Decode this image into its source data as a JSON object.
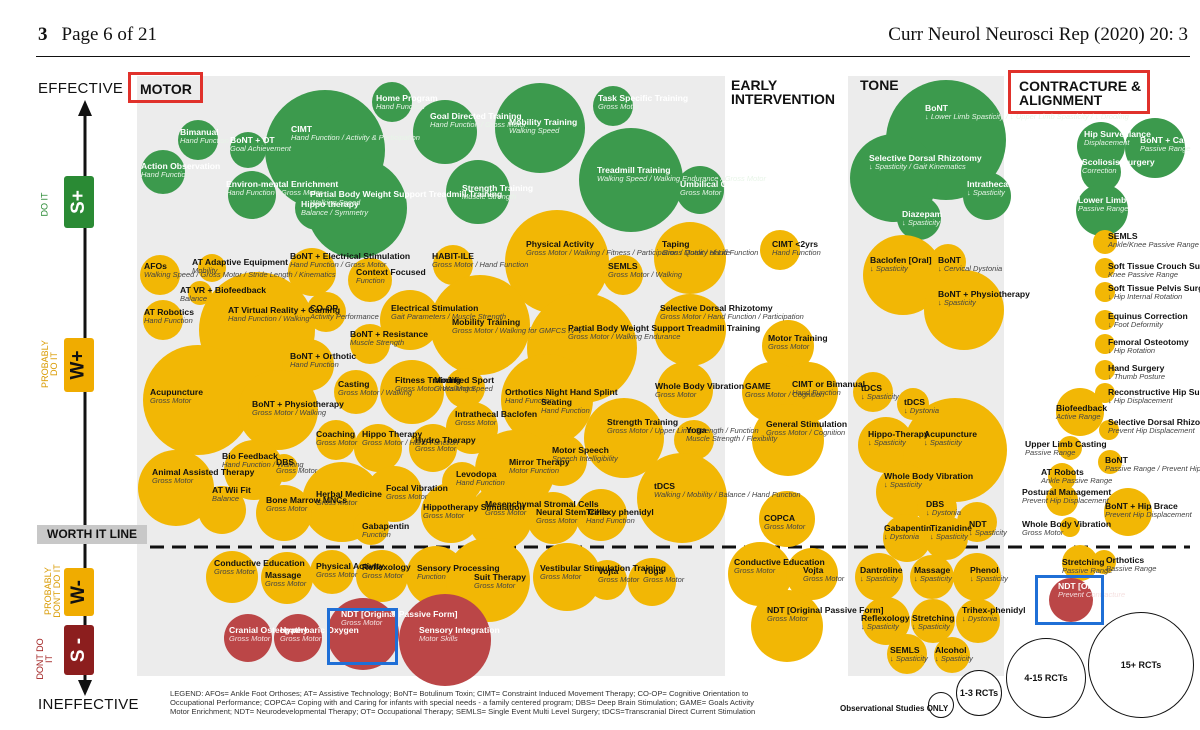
{
  "header": {
    "page_num": "3",
    "page_text": "Page 6 of 21",
    "journal": "Curr Neurol Neurosci Rep (2020) 20: 3"
  },
  "axis": {
    "top": "EFFECTIVE",
    "bottom": "INEFFECTIVE"
  },
  "zones": {
    "do_it": "DO IT",
    "probably_do_it": "PROBABLY DO IT",
    "probably_dont": "PROBABLY DON'T DO IT",
    "dont_do_it": "DONT DO IT"
  },
  "badges": {
    "s_plus": "S+",
    "w_plus": "W+",
    "w_minus": "W-",
    "s_minus": "S -"
  },
  "colors": {
    "green": "#3c9a4d",
    "yellow": "#f2b705",
    "red": "#bb4647",
    "s_plus": "#2a8a34",
    "w_plus": "#e8a800",
    "w_minus": "#e8a800",
    "s_minus": "#8c1e1e"
  },
  "sections": {
    "motor": "MOTOR",
    "early": "EARLY INTERVENTION",
    "tone": "TONE",
    "contracture": "CONTRACTURE & ALIGNMENT"
  },
  "worth_it_line": "WORTH IT LINE",
  "legend_text": "LEGEND: AFOs= Ankle Foot Orthoses; AT= Assistive Technology; BoNT= Botulinum Toxin; CIMT= Constraint Induced Movement Therapy; CO-OP= Cognitive Orientation to Occupational Performance; COPCA= Coping with and Caring for infants with special needs - a family centered program; DBS= Deep Brain Stimulation; GAME= Goals Activity Motor Enrichment; NDT= Neurodevelopmental Therapy; OT= Occupational Therapy; SEMLS= Single Event Multi Level Surgery; tDCS=Transcranial Direct Current Stimulation",
  "evidence_legend": {
    "obs": "Observational Studies ONLY",
    "rct1": "1-3 RCTs",
    "rct2": "4-15 RCTs",
    "rct3": "15+ RCTs"
  },
  "bubbles": [
    {
      "t": "Bimanual",
      "s": "Hand Function",
      "c": "g"
    },
    {
      "t": "BoNT + OT",
      "s": "Goal Achievement",
      "c": "g"
    },
    {
      "t": "Action Observation",
      "s": "Hand Function",
      "c": "g"
    },
    {
      "t": "CIMT",
      "s": "Hand Function / Activity & Participation",
      "c": "g"
    },
    {
      "t": "Home Program",
      "s": "Hand Function",
      "c": "g"
    },
    {
      "t": "Goal Directed Training",
      "s": "Hand Function / Gross Motor",
      "c": "g"
    },
    {
      "t": "Mobility Training",
      "s": "Walking Speed",
      "c": "g"
    },
    {
      "t": "Task Specific Training",
      "s": "Gross Motor",
      "c": "g"
    },
    {
      "t": "Environ-mental Enrichment",
      "s": "Hand Function / Gross Motor",
      "c": "g"
    },
    {
      "t": "Hippo therapy",
      "s": "Balance / Symmetry",
      "c": "g"
    },
    {
      "t": "Partial Body Weight Support Treadmill Training",
      "s": "Walking Speed",
      "c": "g"
    },
    {
      "t": "Strength Training",
      "s": "Muscle Strength",
      "c": "g"
    },
    {
      "t": "Treadmill Training",
      "s": "Walking Speed / Walking Endurance / Gross Motor",
      "c": "g"
    },
    {
      "t": "Umbilical Cord Blood",
      "s": "Gross Motor",
      "c": "g"
    },
    {
      "t": "AFOs",
      "s": "Walking Speed / Gross Motor / Stride Length / Kinematics",
      "c": "y"
    },
    {
      "t": "AT Adaptive Equipment",
      "s": "Mobility",
      "c": "y"
    },
    {
      "t": "AT VR + Biofeedback",
      "s": "Balance",
      "c": "y"
    },
    {
      "t": "BoNT + Electrical Stimulation",
      "s": "Hand Function / Gross Motor",
      "c": "y"
    },
    {
      "t": "Context Focused",
      "s": "Function",
      "c": "y"
    },
    {
      "t": "HABIT-ILE",
      "s": "Gross Motor / Hand Function",
      "c": "y"
    },
    {
      "t": "Physical Activity",
      "s": "Gross Motor / Walking / Fitness / Participation / Quality of Life",
      "c": "y"
    },
    {
      "t": "SEMLS",
      "s": "Gross Motor / Walking",
      "c": "y"
    },
    {
      "t": "Taping",
      "s": "Gross Motor / Hand Function",
      "c": "y"
    },
    {
      "t": "AT Robotics",
      "s": "Hand Function",
      "c": "y"
    },
    {
      "t": "AT Virtual Reality + Gaming",
      "s": "Hand Function / Walking",
      "c": "y"
    },
    {
      "t": "CO-OP",
      "s": "Activity Performance",
      "c": "y"
    },
    {
      "t": "Electrical Stimulation",
      "s": "Gait Parameters / Muscle Strength",
      "c": "y"
    },
    {
      "t": "Mobility Training",
      "s": "Gross Motor / Walking for GMFCS IV-V",
      "c": "y"
    },
    {
      "t": "Partial Body Weight Support Treadmill Training",
      "s": "Gross Motor / Walking Endurance",
      "c": "y"
    },
    {
      "t": "Selective Dorsal Rhizotomy",
      "s": "Gross Motor / Hand Function / Participation",
      "c": "y"
    },
    {
      "t": "BoNT + Resistance",
      "s": "Muscle Strength",
      "c": "y"
    },
    {
      "t": "BoNT + Orthotic",
      "s": "Hand Function",
      "c": "y"
    },
    {
      "t": "Acupuncture",
      "s": "Gross Motor",
      "c": "y"
    },
    {
      "t": "BoNT + Physiotherapy",
      "s": "Gross Motor / Walking",
      "c": "y"
    },
    {
      "t": "Casting",
      "s": "Gross Motor / Walking",
      "c": "y"
    },
    {
      "t": "Fitness Training",
      "s": "Gross Motor / Walking Speed",
      "c": "y"
    },
    {
      "t": "Modified Sport",
      "s": "Gross Motor",
      "c": "y"
    },
    {
      "t": "Orthotics Night Hand Splint",
      "s": "Hand Function",
      "c": "y"
    },
    {
      "t": "Whole Body Vibration",
      "s": "Gross Motor",
      "c": "y"
    },
    {
      "t": "Seating",
      "s": "Hand Function",
      "c": "y"
    },
    {
      "t": "Intrathecal Baclofen",
      "s": "Gross Motor",
      "c": "y"
    },
    {
      "t": "Coaching",
      "s": "Gross Motor",
      "c": "y"
    },
    {
      "t": "Hippo Therapy",
      "s": "Gross Motor / Hand Function",
      "c": "y"
    },
    {
      "t": "Hydro Therapy",
      "s": "Gross Motor",
      "c": "y"
    },
    {
      "t": "Strength Training",
      "s": "Gross Motor / Upper Limb Strength / Function",
      "c": "y"
    },
    {
      "t": "Yoga",
      "s": "Muscle Strength / Flexibility",
      "c": "y"
    },
    {
      "t": "Motor Speech",
      "s": "Speech Intelligibility",
      "c": "y"
    },
    {
      "t": "Mirror Therapy",
      "s": "Motor Function",
      "c": "y"
    },
    {
      "t": "Animal Assisted Therapy",
      "s": "Gross Motor",
      "c": "y"
    },
    {
      "t": "Bio Feedback",
      "s": "Hand Function / Walking",
      "c": "y"
    },
    {
      "t": "DBS",
      "s": "Gross Motor",
      "c": "y"
    },
    {
      "t": "Herbal Medicine",
      "s": "Gross Motor",
      "c": "y"
    },
    {
      "t": "Focal Vibration",
      "s": "Gross Motor",
      "c": "y"
    },
    {
      "t": "Levodopa",
      "s": "Hand Function",
      "c": "y"
    },
    {
      "t": "tDCS",
      "s": "Walking / Mobility / Balance / Hand Function",
      "c": "y"
    },
    {
      "t": "AT Wii Fit",
      "s": "Balance",
      "c": "y"
    },
    {
      "t": "Bone Marrow MNCs",
      "s": "Gross Motor",
      "c": "y"
    },
    {
      "t": "Gabapentin",
      "s": "Function",
      "c": "y"
    },
    {
      "t": "Hippotherapy Simulation",
      "s": "Gross Motor",
      "c": "y"
    },
    {
      "t": "Mesenchymal Stromal Cells",
      "s": "Gross Motor",
      "c": "y"
    },
    {
      "t": "Neural Stem Cells",
      "s": "Gross Motor",
      "c": "y"
    },
    {
      "t": "Trihexy phenidyl",
      "s": "Hand Function",
      "c": "y"
    },
    {
      "t": "Conductive Education",
      "s": "Gross Motor",
      "c": "y"
    },
    {
      "t": "Massage",
      "s": "Gross Motor",
      "c": "y"
    },
    {
      "t": "Physical Activity",
      "s": "Gross Motor",
      "c": "y"
    },
    {
      "t": "Reflexology",
      "s": "Gross Motor",
      "c": "y"
    },
    {
      "t": "Sensory Processing",
      "s": "Function",
      "c": "y"
    },
    {
      "t": "Suit Therapy",
      "s": "Gross Motor",
      "c": "y"
    },
    {
      "t": "Vestibular Stimulation Training",
      "s": "Gross Motor",
      "c": "y"
    },
    {
      "t": "Vojta",
      "s": "Gross Motor",
      "c": "y"
    },
    {
      "t": "Yoga",
      "s": "Gross Motor",
      "c": "y"
    },
    {
      "t": "Cranial Osteopathy",
      "s": "Gross Motor",
      "c": "r"
    },
    {
      "t": "Hyperbaric Oxygen",
      "s": "Gross Motor",
      "c": "r"
    },
    {
      "t": "NDT [Original Passive Form]",
      "s": "Gross Motor",
      "c": "r"
    },
    {
      "t": "Sensory Integration",
      "s": "Motor Skills",
      "c": "r"
    },
    {
      "t": "CIMT <2yrs",
      "s": "Hand Function",
      "c": "y"
    },
    {
      "t": "Motor Training",
      "s": "Gross Motor",
      "c": "y"
    },
    {
      "t": "GAME",
      "s": "Gross Motor / Cognition",
      "c": "y"
    },
    {
      "t": "CIMT or Bimanual",
      "s": "Hand Function",
      "c": "y"
    },
    {
      "t": "General Stimulation",
      "s": "Gross Motor / Cognition",
      "c": "y"
    },
    {
      "t": "COPCA",
      "s": "Gross Motor",
      "c": "y"
    },
    {
      "t": "Conductive Education",
      "s": "Gross Motor",
      "c": "y"
    },
    {
      "t": "Vojta",
      "s": "Gross Motor",
      "c": "y"
    },
    {
      "t": "NDT [Original Passive Form]",
      "s": "Gross Motor",
      "c": "y"
    },
    {
      "t": "BoNT",
      "s": "↓ Lower Limb Spasticity / ↓ Upper Limb Spasticity / ↓ Drooling",
      "c": "g"
    },
    {
      "t": "Selective Dorsal Rhizotomy",
      "s": "↓ Spasticity / Gait Kinematics",
      "c": "g"
    },
    {
      "t": "Intrathecal Baclofen",
      "s": "↓ Spasticity",
      "c": "g"
    },
    {
      "t": "Diazepam",
      "s": "↓ Spasticity",
      "c": "g"
    },
    {
      "t": "Baclofen [Oral]",
      "s": "↓ Spasticity",
      "c": "y"
    },
    {
      "t": "BoNT",
      "s": "↓ Cervical Dystonia",
      "c": "y"
    },
    {
      "t": "BoNT + Physiotherapy",
      "s": "↓ Spasticity",
      "c": "y"
    },
    {
      "t": "tDCS",
      "s": "↓ Spasticity",
      "c": "y"
    },
    {
      "t": "tDCS",
      "s": "↓ Dystonia",
      "c": "y"
    },
    {
      "t": "Hippo-Therapy",
      "s": "↓ Spasticity",
      "c": "y"
    },
    {
      "t": "Acupuncture",
      "s": "↓ Spasticity",
      "c": "y"
    },
    {
      "t": "Whole Body Vibration",
      "s": "↓ Spasticity",
      "c": "y"
    },
    {
      "t": "DBS",
      "s": "↓ Dystonia",
      "c": "y"
    },
    {
      "t": "NDT",
      "s": "↓ Spasticity",
      "c": "y"
    },
    {
      "t": "Gabapentin",
      "s": "↓ Dystonia",
      "c": "y"
    },
    {
      "t": "Tizanidine",
      "s": "↓ Spasticity",
      "c": "y"
    },
    {
      "t": "Dantroline",
      "s": "↓ Spasticity",
      "c": "y"
    },
    {
      "t": "Massage",
      "s": "↓ Spasticity",
      "c": "y"
    },
    {
      "t": "Phenol",
      "s": "↓ Spasticity",
      "c": "y"
    },
    {
      "t": "Reflexology",
      "s": "↓ Spasticity",
      "c": "y"
    },
    {
      "t": "Stretching",
      "s": "↓ Spasticity",
      "c": "y"
    },
    {
      "t": "Trihex-phenidyl",
      "s": "↓ Dystonia",
      "c": "y"
    },
    {
      "t": "SEMLS",
      "s": "↓ Spasticity",
      "c": "y"
    },
    {
      "t": "Alcohol",
      "s": "↓ Spasticity",
      "c": "y"
    },
    {
      "t": "Hip Surveillance",
      "s": "Displacement",
      "c": "g"
    },
    {
      "t": "BoNT + Casting",
      "s": "Passive Range",
      "c": "g"
    },
    {
      "t": "Scoliosis Surgery",
      "s": "Correction",
      "c": "g"
    },
    {
      "t": "Lower Limb Casting",
      "s": "Passive Range",
      "c": "g"
    },
    {
      "t": "SEMLS",
      "s": "Ankle/Knee Passive Range",
      "c": "y"
    },
    {
      "t": "Soft Tissue Crouch Surgery",
      "s": "Knee Passive Range",
      "c": "y"
    },
    {
      "t": "Soft Tissue Pelvis Surgery",
      "s": "↓ Hip Internal Rotation",
      "c": "y"
    },
    {
      "t": "Equinus Correction",
      "s": "↓ Foot Deformity",
      "c": "y"
    },
    {
      "t": "Femoral Osteotomy",
      "s": "↓ Hip Rotation",
      "c": "y"
    },
    {
      "t": "Hand Surgery",
      "s": "↓ Thumb Posture",
      "c": "y"
    },
    {
      "t": "Reconstructive Hip Surgery",
      "s": "↓ Hip Displacement",
      "c": "y"
    },
    {
      "t": "Biofeedback",
      "s": "Active Range",
      "c": "y"
    },
    {
      "t": "Selective Dorsal Rhizotomy",
      "s": "Prevent Hip Displacement",
      "c": "y"
    },
    {
      "t": "Upper Limb Casting",
      "s": "Passive Range",
      "c": "y"
    },
    {
      "t": "BoNT",
      "s": "Passive Range / Prevent Hip Displacement",
      "c": "y"
    },
    {
      "t": "AT Robots",
      "s": "Ankle Passive Range",
      "c": "y"
    },
    {
      "t": "Postural Management",
      "s": "Prevent Hip Displacement",
      "c": "y"
    },
    {
      "t": "BoNT + Hip Brace",
      "s": "Prevent Hip Displacement",
      "c": "y"
    },
    {
      "t": "Whole Body Vibration",
      "s": "Gross Motor",
      "c": "y"
    },
    {
      "t": "Stretching",
      "s": "Passive Range",
      "c": "y"
    },
    {
      "t": "Orthotics",
      "s": "Passive Range",
      "c": "y"
    },
    {
      "t": "NDT [Original Form]",
      "s": "Prevent Contracture",
      "c": "r"
    }
  ]
}
